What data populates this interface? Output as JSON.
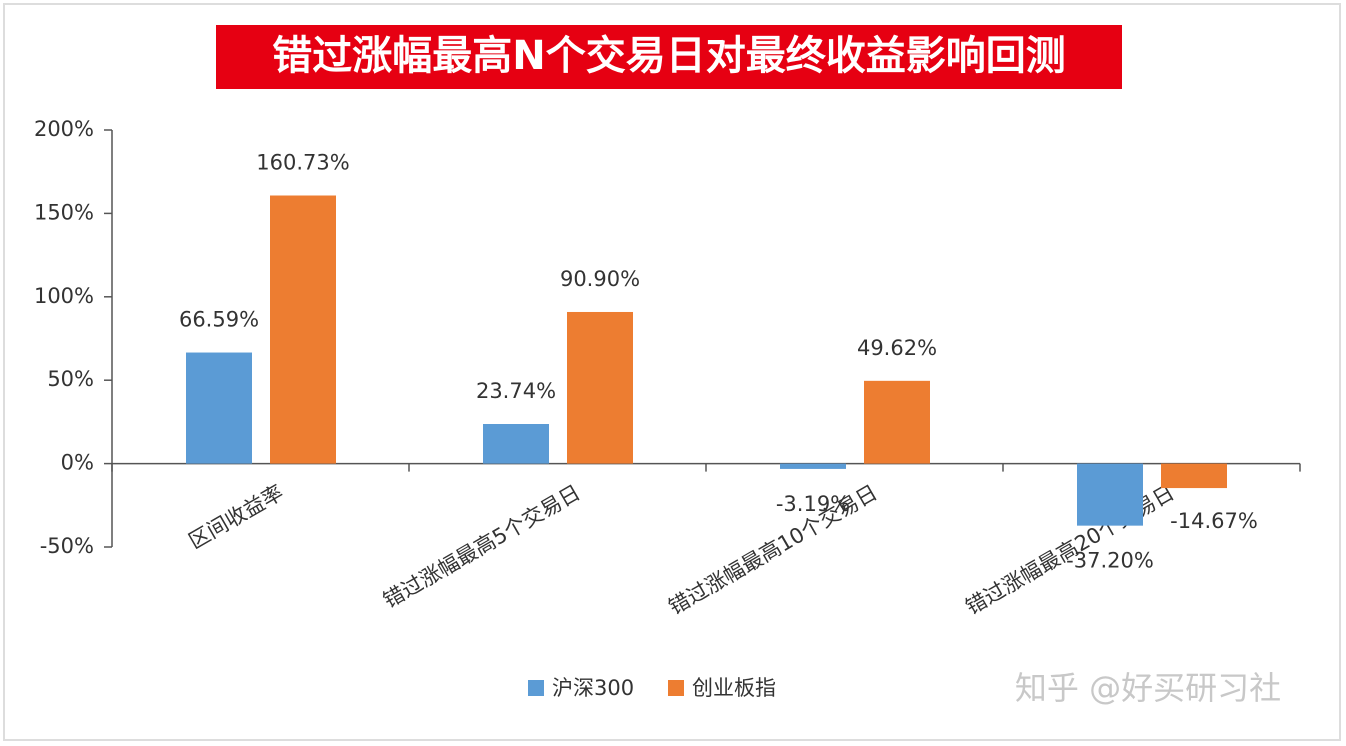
{
  "chart_data": {
    "type": "bar",
    "title": "错过涨幅最高N个交易日对最终收益影响回测",
    "categories": [
      "区间收益率",
      "错过涨幅最高5个交易日",
      "错过涨幅最高10个交易日",
      "错过涨幅最高20个交易日"
    ],
    "series": [
      {
        "name": "沪深300",
        "color": "#5b9bd5",
        "values": [
          66.59,
          23.74,
          -3.19,
          -37.2
        ],
        "value_labels": [
          "66.59%",
          "23.74%",
          "-3.19%",
          "-37.20%"
        ]
      },
      {
        "name": "创业板指",
        "color": "#ed7d31",
        "values": [
          160.73,
          90.9,
          49.62,
          -14.67
        ],
        "value_labels": [
          "160.73%",
          "90.90%",
          "49.62%",
          "-14.67%"
        ]
      }
    ],
    "ylim": [
      -50,
      200
    ],
    "yticks": [
      {
        "value": -50,
        "label": "-50%"
      },
      {
        "value": 0,
        "label": "0%"
      },
      {
        "value": 50,
        "label": "50%"
      },
      {
        "value": 100,
        "label": "100%"
      },
      {
        "value": 150,
        "label": "150%"
      },
      {
        "value": 200,
        "label": "200%"
      }
    ],
    "legend": "bottom",
    "watermark": "知乎 @好买研习社"
  }
}
